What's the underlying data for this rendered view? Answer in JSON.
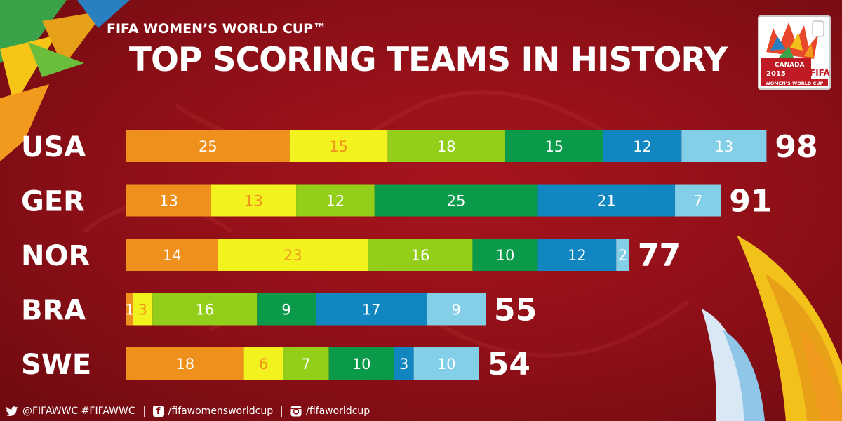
{
  "header": {
    "subtitle": "FIFA WOMEN’S WORLD CUP™",
    "title": "TOP SCORING TEAMS IN HISTORY"
  },
  "logo": {
    "line1": "CANADA",
    "line2": "2015",
    "brand": "FIFA",
    "caption": "WOMEN’S WORLD CUP"
  },
  "colors": {
    "background": "#8c0f17",
    "segments": [
      "#f0901c",
      "#f2f21e",
      "#93cf1a",
      "#0a9a4a",
      "#1186c0",
      "#84cfe8"
    ],
    "segment_text": [
      "#ffffff",
      "#f0901c",
      "#ffffff",
      "#ffffff",
      "#ffffff",
      "#ffffff"
    ]
  },
  "footer": {
    "twitter": "@FIFAWWC #FIFAWWC",
    "facebook": "/fifawomensworldcup",
    "instagram": "/fifaworldcup"
  },
  "chart_data": {
    "type": "bar",
    "orientation": "horizontal",
    "stacked": true,
    "title": "TOP SCORING TEAMS IN HISTORY",
    "categories": [
      "USA",
      "GER",
      "NOR",
      "BRA",
      "SWE"
    ],
    "segments": [
      [
        25,
        15,
        18,
        15,
        12,
        13
      ],
      [
        13,
        13,
        12,
        25,
        21,
        7
      ],
      [
        14,
        23,
        16,
        10,
        12,
        2
      ],
      [
        1,
        3,
        16,
        9,
        17,
        9
      ],
      [
        18,
        6,
        7,
        10,
        3,
        10
      ]
    ],
    "totals": [
      98,
      91,
      77,
      55,
      54
    ],
    "legend": "none",
    "grid": false
  }
}
